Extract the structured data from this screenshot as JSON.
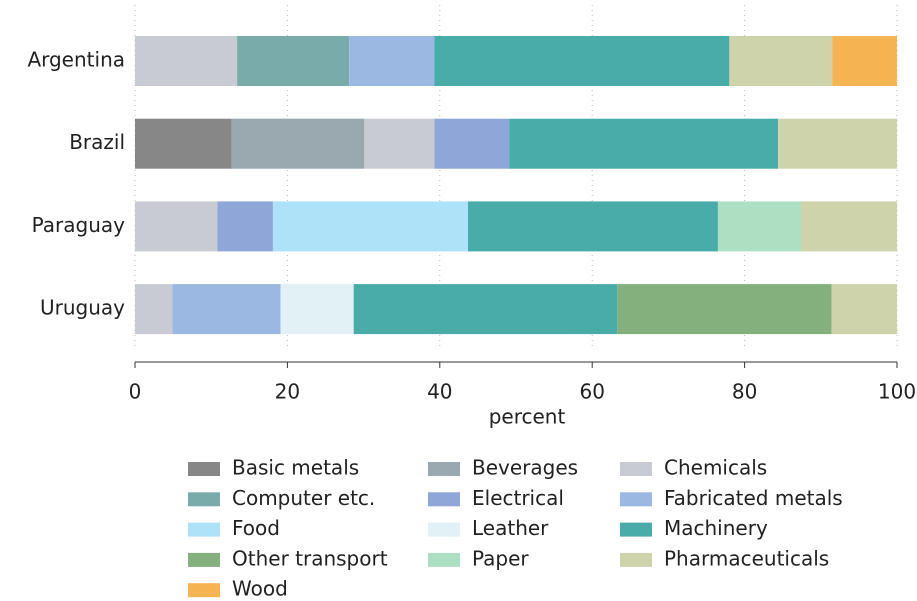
{
  "chart_data": {
    "type": "stacked_barh",
    "categories": [
      "Argentina",
      "Brazil",
      "Paraguay",
      "Uruguay"
    ],
    "series": [
      {
        "name": "Basic metals",
        "color": "#878787",
        "values": [
          null,
          12.7,
          null,
          null
        ]
      },
      {
        "name": "Beverages",
        "color": "#9aa8b0",
        "values": [
          null,
          17.4,
          null,
          null
        ]
      },
      {
        "name": "Chemicals",
        "color": "#c8cbd1",
        "values": [
          13.4,
          9.2,
          10.8,
          4.9
        ]
      },
      {
        "name": "Computer etc.",
        "color": "#7aabab",
        "values": [
          14.7,
          null,
          null,
          null
        ]
      },
      {
        "name": "Electrical",
        "color": "#8fa6d8",
        "values": [
          null,
          9.8,
          7.3,
          null
        ]
      },
      {
        "name": "Fabricated metals",
        "color": "#9ab8e2",
        "values": [
          11.2,
          null,
          null,
          14.2
        ]
      },
      {
        "name": "Food",
        "color": "#aee2f8",
        "values": [
          null,
          null,
          25.6,
          null
        ]
      },
      {
        "name": "Leather",
        "color": "#e1f1f6",
        "values": [
          null,
          null,
          null,
          9.6
        ]
      },
      {
        "name": "Machinery",
        "color": "#4aaca9",
        "values": [
          38.7,
          35.3,
          32.8,
          34.6
        ]
      },
      {
        "name": "Other transport",
        "color": "#84b07e",
        "values": [
          null,
          null,
          null,
          28.1
        ]
      },
      {
        "name": "Paper",
        "color": "#ade0c2",
        "values": [
          null,
          null,
          10.9,
          null
        ]
      },
      {
        "name": "Pharmaceuticals",
        "color": "#cfd3ab",
        "values": [
          13.5,
          15.6,
          12.6,
          8.6
        ]
      },
      {
        "name": "Wood",
        "color": "#f5b452",
        "values": [
          8.5,
          null,
          null,
          null
        ]
      }
    ],
    "xlabel": "percent",
    "xlim": [
      0,
      100
    ],
    "xticks": [
      0,
      20,
      40,
      60,
      80,
      100
    ],
    "grid": true,
    "legend": "bottom"
  }
}
